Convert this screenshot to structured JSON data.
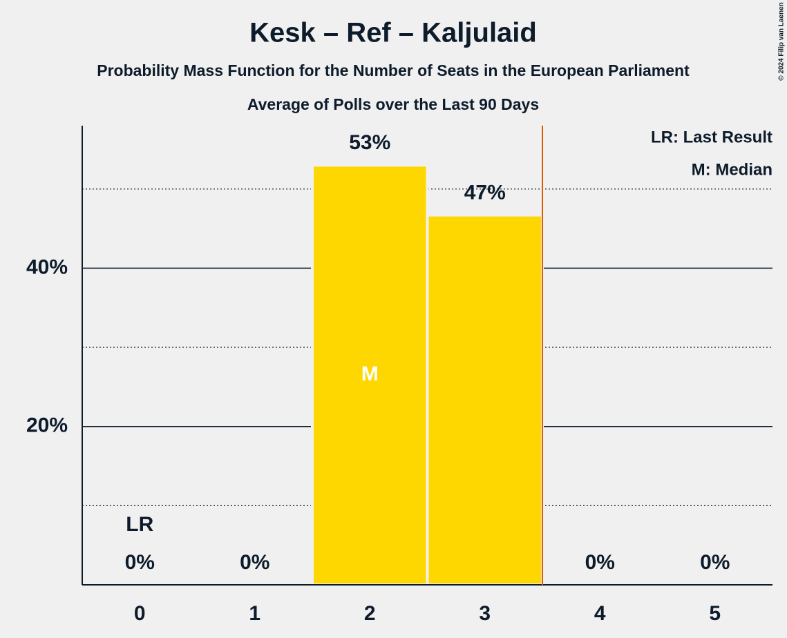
{
  "chart_data": {
    "type": "bar",
    "title": "Kesk – Ref – Kaljulaid",
    "subtitle": "Probability Mass Function for the Number of Seats in the European Parliament",
    "subtitle2": "Average of Polls over the Last 90 Days",
    "copyright": "© 2024 Filip van Laenen",
    "x": [
      0,
      1,
      2,
      3,
      4,
      5
    ],
    "xlim": [
      -0.5,
      5.5
    ],
    "values": [
      0,
      0,
      53,
      46.7,
      0,
      0
    ],
    "value_labels": [
      "0%",
      "0%",
      "53%",
      "47%",
      "0%",
      "0%"
    ],
    "color": "#ffd700",
    "ylim": [
      0,
      58
    ],
    "yticks": [
      {
        "value": 20,
        "label": "20%"
      },
      {
        "value": 40,
        "label": "40%"
      }
    ],
    "minor_yticks": [
      10,
      30,
      50
    ],
    "grid": true,
    "median": 2,
    "median_label": "M",
    "last_result": 0,
    "last_result_label": "LR",
    "legend": [
      "LR: Last Result",
      "M: Median"
    ]
  }
}
